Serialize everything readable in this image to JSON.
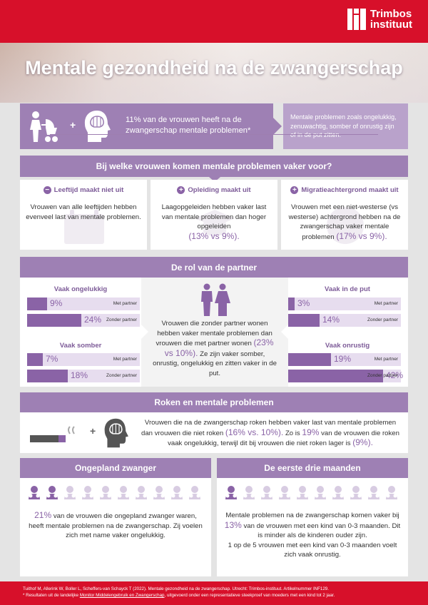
{
  "logo": {
    "line1": "Trimbos",
    "line2": "instituut"
  },
  "title": "Mentale gezondheid na de zwangerschap",
  "intro": {
    "plus": "+",
    "headline": "11% van de vrouwen heeft na de zwangerschap mentale problemen*",
    "note": "Mentale problemen zoals ongelukkig, zenuwachtig, somber of onrustig zijn of in de put zitten."
  },
  "which": {
    "header": "Bij welke vrouwen komen mentale problemen vaker voor?",
    "col1": {
      "sign": "−",
      "title": "Leeftijd maakt niet uit",
      "text": "Vrouwen van alle leeftijden hebben evenveel last van mentale problemen."
    },
    "col2": {
      "sign": "+",
      "title": "Opleiding maakt uit",
      "text": "Laagopgeleiden hebben vaker last van mentale problemen dan hoger opgeleiden",
      "stat": "(13% vs 9%)."
    },
    "col3": {
      "sign": "+",
      "title": "Migratieachtergrond maakt uit",
      "text": "Vrouwen met een niet-westerse (vs westerse) achtergrond hebben na de zwangerschap vaker mentale problemen",
      "stat": "(17% vs 9%)."
    }
  },
  "partner": {
    "header": "De rol van de partner",
    "center_text_a": "Vrouwen die zonder partner wonen hebben vaker mentale problemen dan vrouwen die met partner wonen",
    "center_stat": "(23% vs 10%).",
    "center_text_b": "Ze zijn vaker somber, onrustig, ongelukkig en zitten vaker in de put.",
    "groups": [
      {
        "title": "Vaak ongelukkig",
        "rows": [
          {
            "value": 9,
            "label_value": "9%",
            "label": "Met partner"
          },
          {
            "value": 24,
            "label_value": "24%",
            "label": "Zonder partner"
          }
        ]
      },
      {
        "title": "Vaak somber",
        "rows": [
          {
            "value": 7,
            "label_value": "7%",
            "label": "Met partner"
          },
          {
            "value": 18,
            "label_value": "18%",
            "label": "Zonder partner"
          }
        ]
      },
      {
        "title": "Vaak in de put",
        "rows": [
          {
            "value": 3,
            "label_value": "3%",
            "label": "Met partner"
          },
          {
            "value": 14,
            "label_value": "14%",
            "label": "Zonder partner"
          }
        ]
      },
      {
        "title": "Vaak onrustig",
        "rows": [
          {
            "value": 19,
            "label_value": "19%",
            "label": "Met partner"
          },
          {
            "value": 42,
            "label_value": "42%",
            "label": "Zonder partner"
          }
        ]
      }
    ]
  },
  "smoking": {
    "header": "Roken en mentale problemen",
    "plus": "+",
    "text_a": "Vrouwen die na de zwangerschap roken hebben vaker last van mentale problemen dan vrouwen die niet roken",
    "stat1": "(16% vs. 10%).",
    "text_b": "Zo is",
    "stat2": "19%",
    "text_c": "van de vrouwen die roken vaak ongelukkig, terwijl dit bij vrouwen die niet roken lager is",
    "stat3": "(9%)."
  },
  "unplanned": {
    "header": "Ongepland zwanger",
    "highlighted": 2,
    "total": 10,
    "stat": "21%",
    "text": "van de vrouwen die ongepland zwanger waren, heeft mentale problemen na de zwangerschap. Zij voelen zich met name vaker ongelukkig."
  },
  "first_months": {
    "header": "De eerste drie maanden",
    "highlighted": 1,
    "total": 10,
    "text_a": "Mentale problemen na de zwangerschap komen vaker bij",
    "stat": "13%",
    "text_b": "van de vrouwen met een kind van 0-3 maanden. Dit is minder als de kinderen ouder zijn.",
    "text_c": "1 op de 5 vrouwen met een kind van 0-3 maanden voelt zich vaak onrustig."
  },
  "footer": {
    "citation": "Tuithof M, Allerink W, Boller L, Scheffers-van Schayck T (2022). Mentale gezondheid na de zwangerschap. Utrecht: Trimbos-instituut. Artikelnummer INF129.",
    "note_a": "* Resultaten uit de landelijke",
    "link": "Monitor Middelengebruik en Zwangerschap",
    "note_b": ", uitgevoerd onder een representatieve steekproef van moeders met een kind tot 2 jaar."
  },
  "colors": {
    "brand_red": "#d7102a",
    "purple": "#9e80b4",
    "accent": "#8a63a6",
    "light_purple": "#ddd0e6"
  }
}
